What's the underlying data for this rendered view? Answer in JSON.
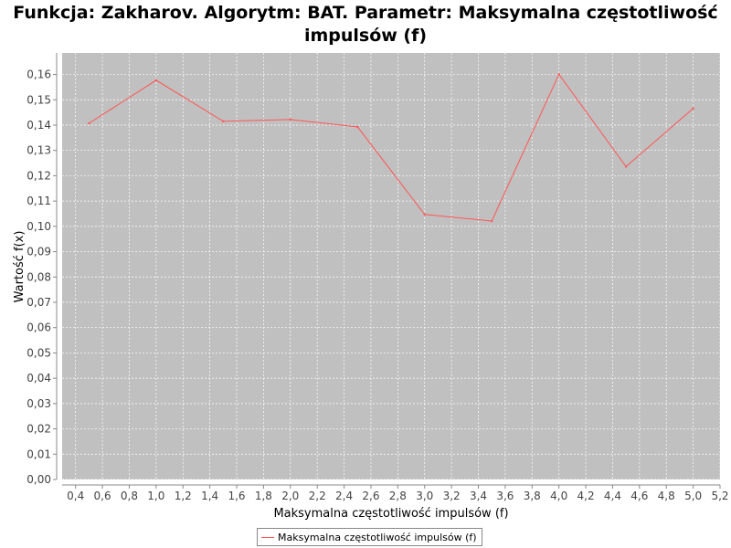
{
  "chart_data": {
    "type": "line",
    "title_lines": [
      "Funkcja: Zakharov. Algorytm: BAT. Parametr: Maksymalna częstotliwość",
      "impulsów (f)"
    ],
    "xlabel": "Maksymalna częstotliwość impulsów (f)",
    "ylabel": "Wartość f(x)",
    "xlim": [
      0.3,
      5.2
    ],
    "ylim": [
      0.0,
      0.1685
    ],
    "x_ticks": [
      "0,4",
      "0,6",
      "0,8",
      "1,0",
      "1,2",
      "1,4",
      "1,6",
      "1,8",
      "2,0",
      "2,2",
      "2,4",
      "2,6",
      "2,8",
      "3,0",
      "3,2",
      "3,4",
      "3,6",
      "3,8",
      "4,0",
      "4,2",
      "4,4",
      "4,6",
      "4,8",
      "5,0",
      "5,2"
    ],
    "y_ticks": [
      "0,00",
      "0,01",
      "0,02",
      "0,03",
      "0,04",
      "0,05",
      "0,06",
      "0,07",
      "0,08",
      "0,09",
      "0,10",
      "0,11",
      "0,12",
      "0,13",
      "0,14",
      "0,15",
      "0,16"
    ],
    "grid": true,
    "legend_position": "bottom-center",
    "plot_background": "#c0c0c0",
    "series": [
      {
        "name": "Maksymalna częstotliwość impulsów (f)",
        "color": "#ff5555",
        "x": [
          0.5,
          1.0,
          1.5,
          2.0,
          2.5,
          3.0,
          3.5,
          4.0,
          4.5,
          5.0
        ],
        "y": [
          0.1407,
          0.1577,
          0.1415,
          0.1422,
          0.1393,
          0.1047,
          0.1021,
          0.1601,
          0.1236,
          0.1466
        ]
      }
    ]
  }
}
